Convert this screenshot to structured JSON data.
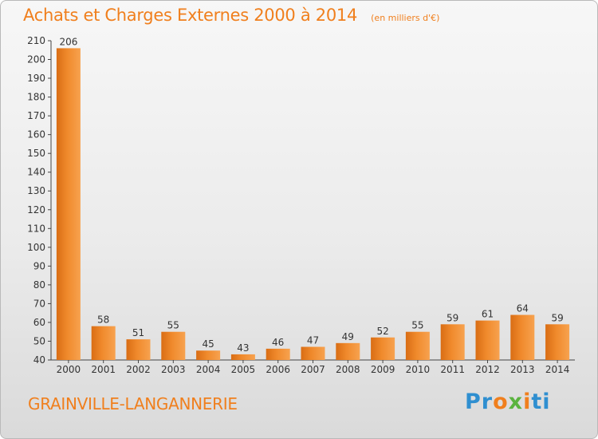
{
  "chart_data": {
    "type": "bar",
    "title": "Achats et Charges Externes 2000 à 2014",
    "unit_note": "(en milliers d'€)",
    "categories": [
      "2000",
      "2001",
      "2002",
      "2003",
      "2004",
      "2005",
      "2006",
      "2007",
      "2008",
      "2009",
      "2010",
      "2011",
      "2012",
      "2013",
      "2014"
    ],
    "values": [
      206,
      58,
      51,
      55,
      45,
      43,
      46,
      47,
      49,
      52,
      55,
      59,
      61,
      64,
      59
    ],
    "ylim": [
      40,
      210
    ],
    "yticks": [
      40,
      50,
      60,
      70,
      80,
      90,
      100,
      110,
      120,
      130,
      140,
      150,
      160,
      170,
      180,
      190,
      200,
      210
    ],
    "grid": false,
    "bar_color": "#f08a2c",
    "bar_color_dark": "#d96d14"
  },
  "footer": {
    "commune": "GRAINVILLE-LANGANNERIE",
    "logo_parts": [
      "Pr",
      "o",
      "x",
      "i",
      "ti"
    ]
  }
}
